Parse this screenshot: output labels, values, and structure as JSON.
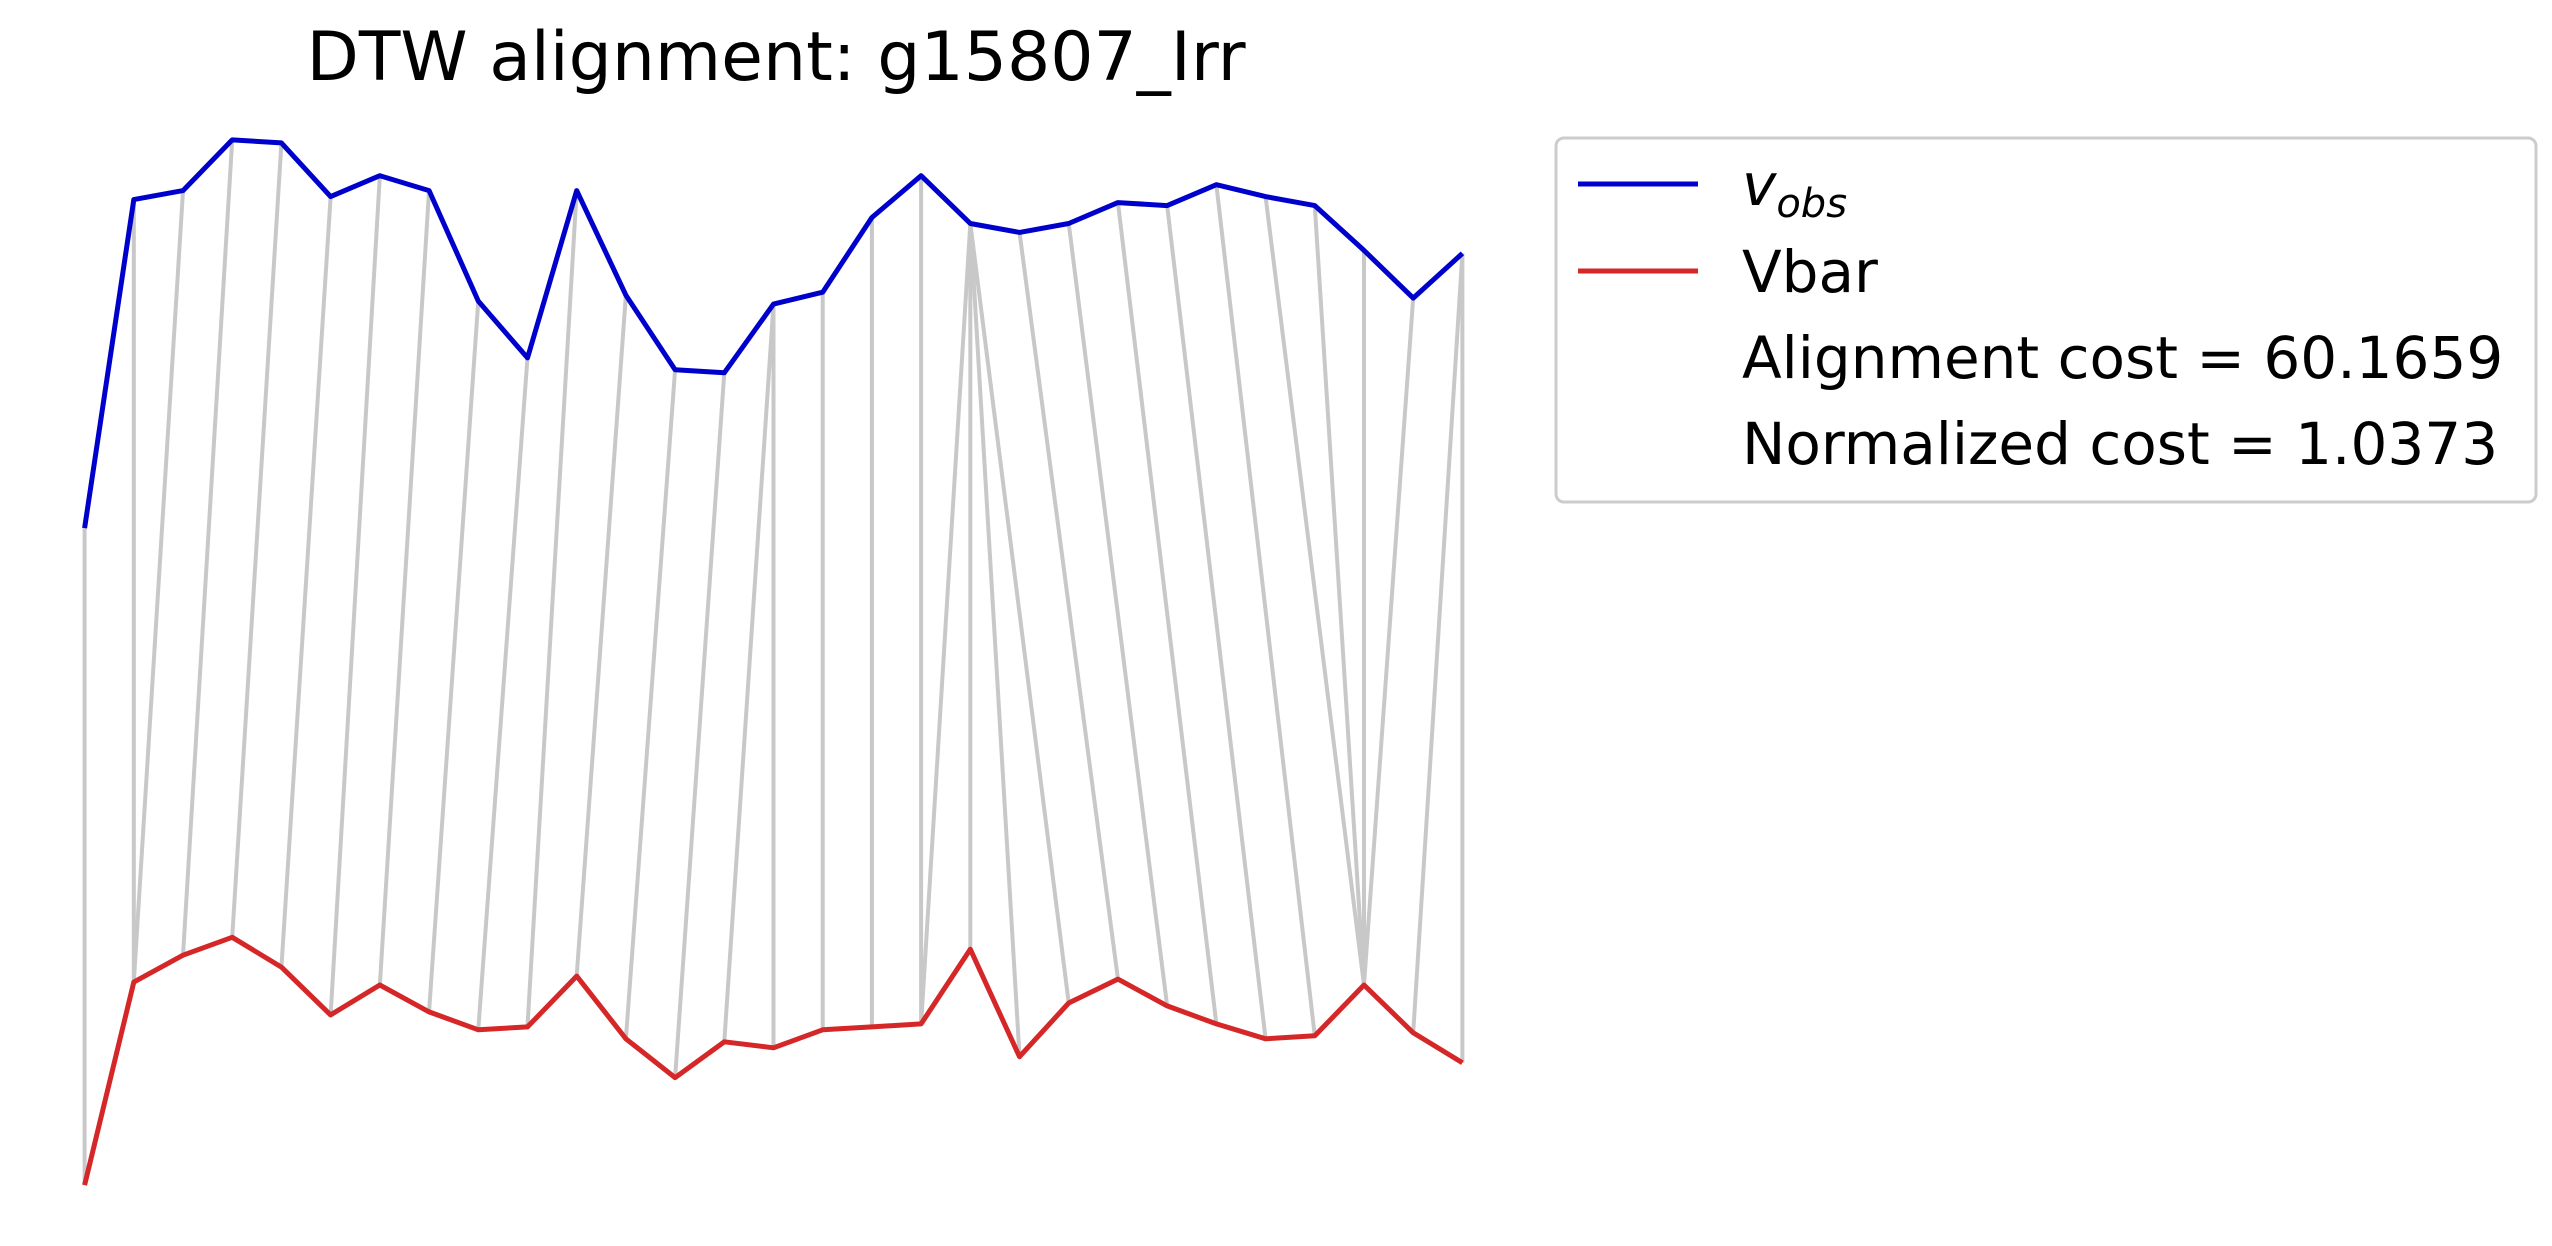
{
  "colors": {
    "obs": "#0000cc",
    "bar": "#d62728",
    "link": "#c8c8c8",
    "legend_border": "#cccccc"
  },
  "chart_data": {
    "type": "line",
    "title": "DTW alignment: g15807_Irr",
    "axes_visible": false,
    "legend_position": "upper right, outside plot",
    "legend": {
      "series_0": {
        "base": "v",
        "subscript": "obs"
      },
      "series_1": "Vbar",
      "cost": "Alignment cost = 60.1659",
      "normalized": "Normalized cost = 1.0373"
    },
    "x": [
      0,
      1,
      2,
      3,
      4,
      5,
      6,
      7,
      8,
      9,
      10,
      11,
      12,
      13,
      14,
      15,
      16,
      17,
      18,
      19,
      20,
      21,
      22,
      23,
      24,
      25,
      26,
      27,
      28
    ],
    "series": [
      {
        "name_base": "v",
        "name_sub": "obs",
        "color": "#0000cc",
        "values": [
          98.6,
          99.7,
          99.73,
          99.9,
          99.89,
          99.71,
          99.78,
          99.73,
          99.36,
          99.17,
          99.73,
          99.38,
          99.13,
          99.12,
          99.35,
          99.39,
          99.64,
          99.78,
          99.62,
          99.59,
          99.62,
          99.69,
          99.68,
          99.75,
          99.71,
          99.68,
          99.53,
          99.37,
          99.52
        ]
      },
      {
        "name": "Vbar",
        "color": "#d62728",
        "values": [
          96.4,
          97.08,
          97.17,
          97.23,
          97.13,
          96.97,
          97.07,
          96.98,
          96.92,
          96.93,
          97.1,
          96.89,
          96.76,
          96.88,
          96.86,
          96.92,
          96.93,
          96.94,
          97.19,
          96.83,
          97.01,
          97.09,
          97.0,
          96.94,
          96.89,
          96.9,
          97.07,
          96.91,
          96.81
        ]
      }
    ],
    "alignment_path": [
      [
        0,
        0
      ],
      [
        1,
        1
      ],
      [
        2,
        1
      ],
      [
        3,
        2
      ],
      [
        4,
        3
      ],
      [
        5,
        4
      ],
      [
        6,
        5
      ],
      [
        7,
        6
      ],
      [
        8,
        7
      ],
      [
        9,
        8
      ],
      [
        10,
        9
      ],
      [
        11,
        10
      ],
      [
        12,
        11
      ],
      [
        13,
        12
      ],
      [
        14,
        13
      ],
      [
        14,
        14
      ],
      [
        15,
        15
      ],
      [
        16,
        16
      ],
      [
        17,
        17
      ],
      [
        18,
        17
      ],
      [
        18,
        18
      ],
      [
        18,
        19
      ],
      [
        18,
        20
      ],
      [
        19,
        21
      ],
      [
        20,
        22
      ],
      [
        21,
        23
      ],
      [
        22,
        24
      ],
      [
        23,
        25
      ],
      [
        24,
        26
      ],
      [
        25,
        26
      ],
      [
        26,
        26
      ],
      [
        27,
        26
      ],
      [
        28,
        27
      ],
      [
        28,
        28
      ]
    ],
    "xlim": [
      -0.5,
      28.5
    ],
    "ylim": [
      96.3,
      100.0
    ]
  }
}
